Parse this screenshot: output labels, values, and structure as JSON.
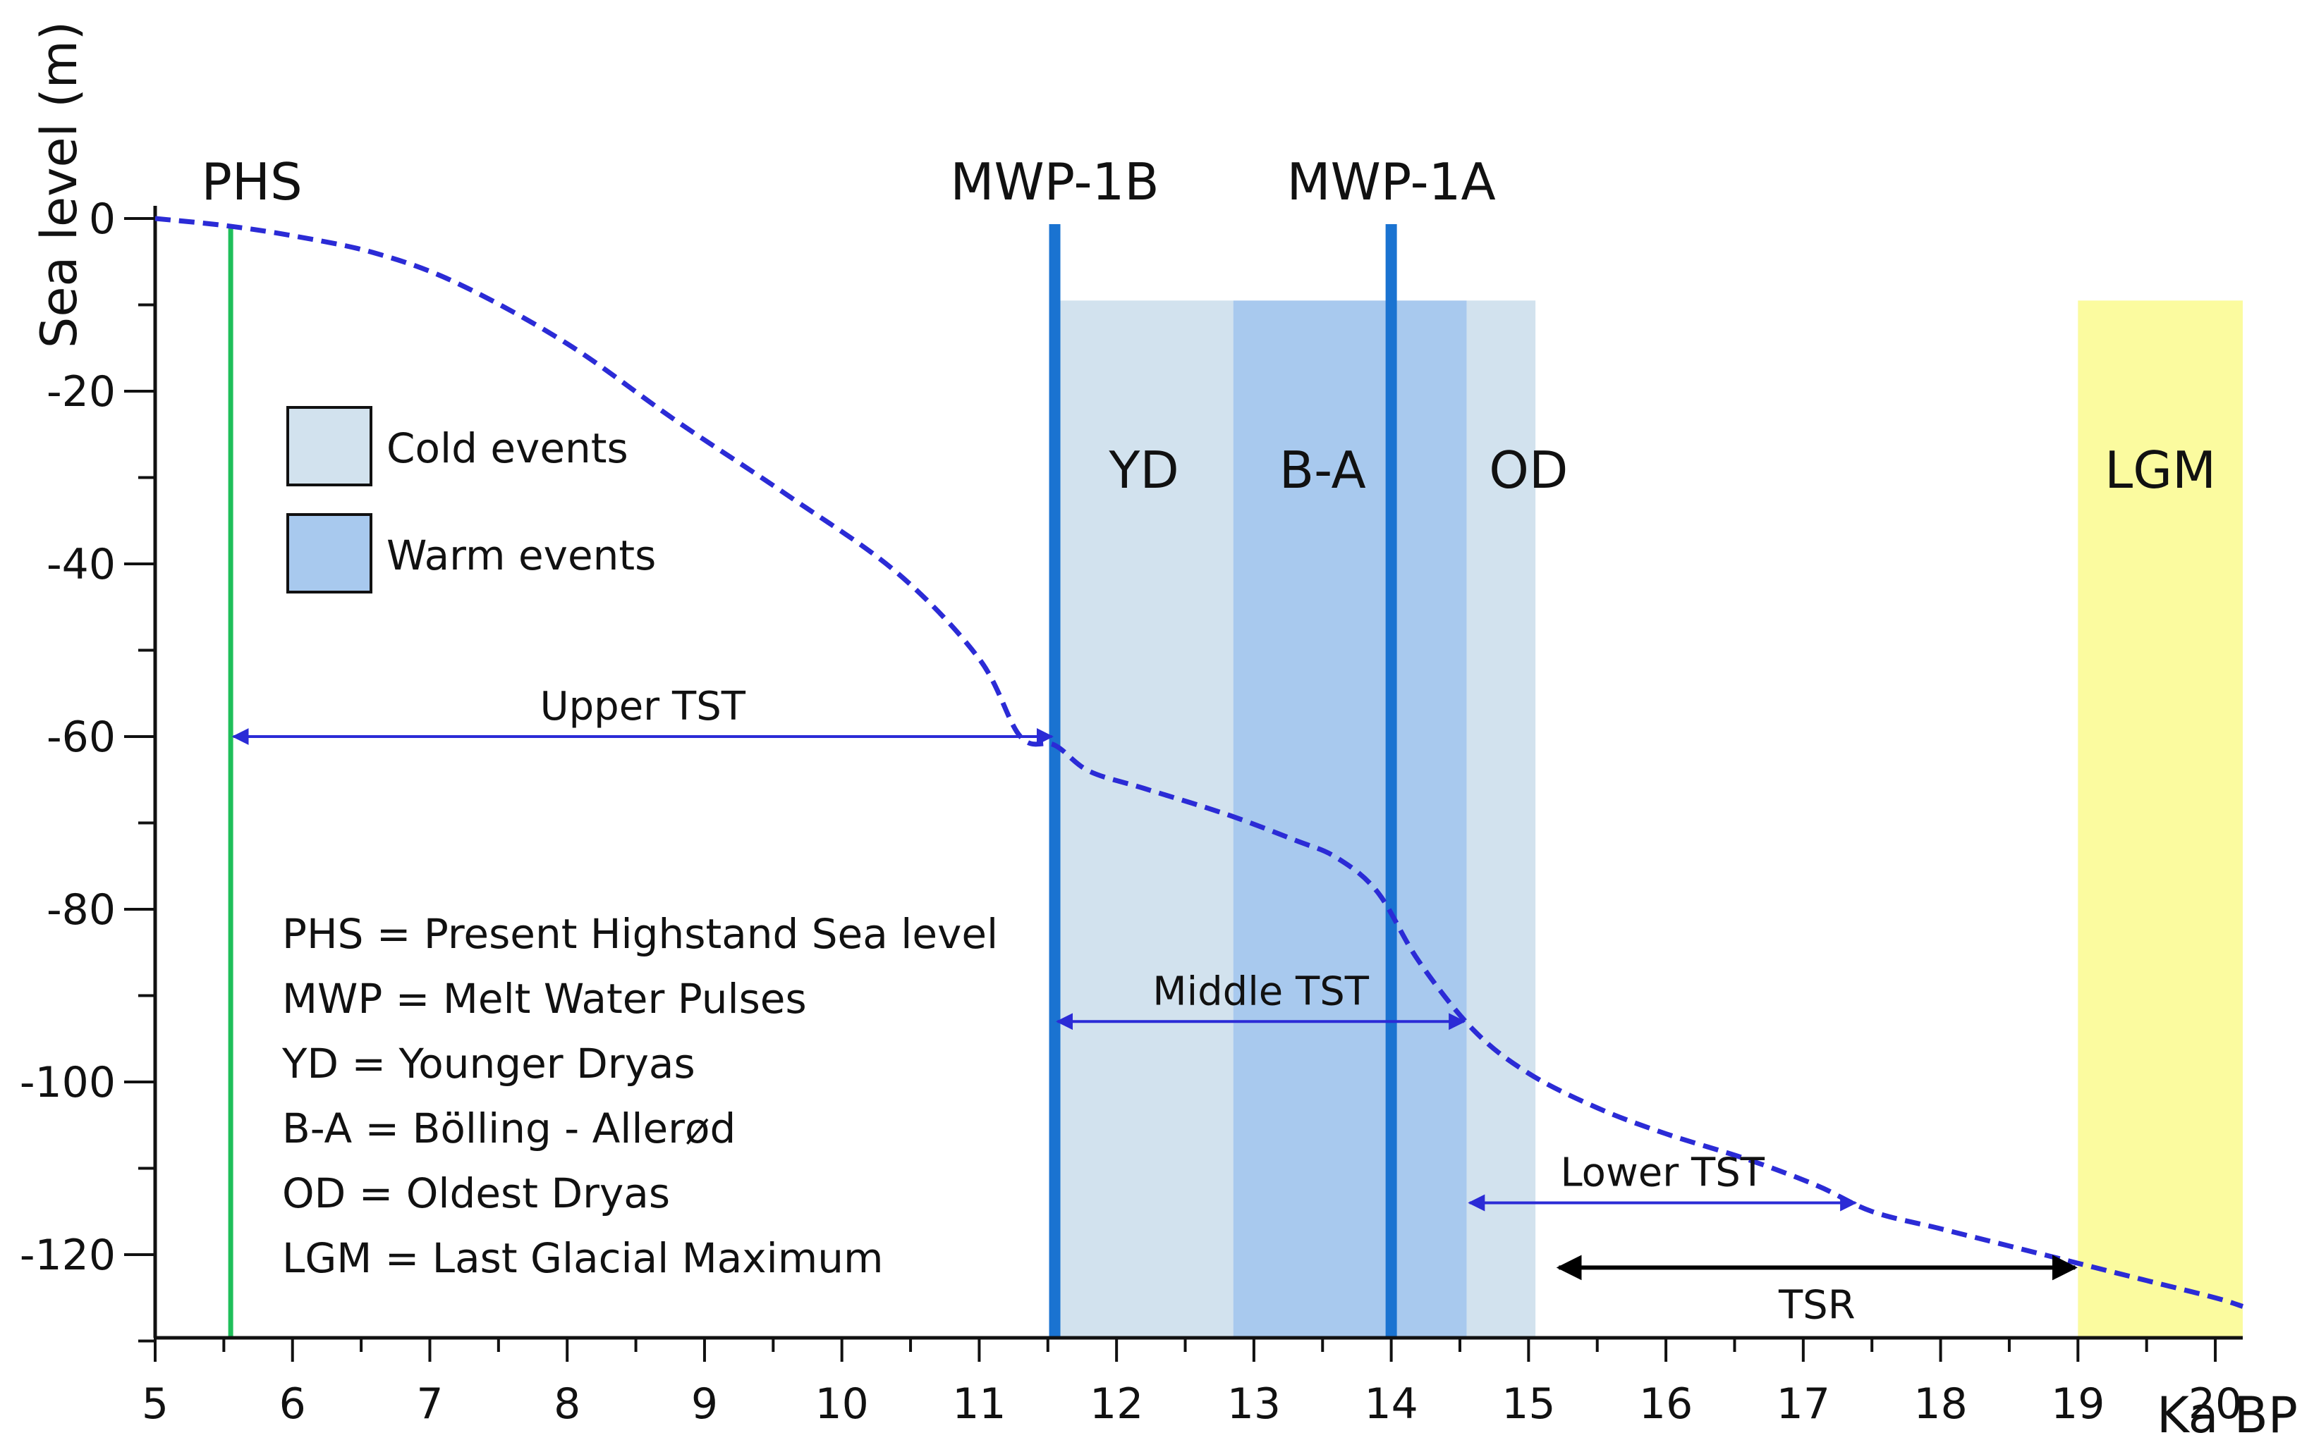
{
  "chart_data": {
    "type": "line",
    "xlabel": "Ka BP",
    "ylabel": "Sea level (m)",
    "xlim": [
      5,
      20.2
    ],
    "ylim": [
      -130,
      0
    ],
    "x_ticks": [
      5,
      6,
      7,
      8,
      9,
      10,
      11,
      12,
      13,
      14,
      15,
      16,
      17,
      18,
      19,
      20
    ],
    "y_ticks": [
      0,
      -20,
      -40,
      -60,
      -80,
      -100,
      -120
    ],
    "series": [
      {
        "color": "#2b2bd6",
        "style": "dashed",
        "x": [
          5.0,
          5.5,
          6.0,
          6.6,
          7.2,
          8.0,
          8.8,
          9.6,
          10.4,
          11.0,
          11.3,
          11.55,
          11.8,
          12.2,
          12.8,
          13.3,
          13.6,
          13.9,
          14.2,
          14.6,
          15.0,
          15.5,
          16.0,
          16.6,
          17.1,
          17.5,
          18.0,
          18.5,
          19.0,
          19.5,
          20.0,
          20.2
        ],
        "y": [
          0,
          -0.8,
          -2,
          -4,
          -7.5,
          -14.5,
          -23.5,
          -32,
          -41,
          -51,
          -60,
          -61,
          -64,
          -66,
          -69,
          -72,
          -74,
          -78,
          -86,
          -94,
          -99,
          -103,
          -106,
          -109,
          -112,
          -115,
          -117,
          -119,
          -121,
          -123,
          -125,
          -126
        ]
      }
    ],
    "vertical_lines": [
      {
        "label": "PHS",
        "x": 5.55,
        "color": "#1fbf5a"
      },
      {
        "label": "MWP-1B",
        "x": 11.55,
        "color": "#1a73d1"
      },
      {
        "label": "MWP-1A",
        "x": 14.0,
        "color": "#1a73d1"
      }
    ],
    "bands": [
      {
        "label": "YD",
        "x0": 11.55,
        "x1": 12.85,
        "kind": "cold",
        "color": "#d2e2ee"
      },
      {
        "label": "B-A",
        "x0": 12.85,
        "x1": 14.55,
        "kind": "warm",
        "color": "#a8c9ee"
      },
      {
        "label": "OD",
        "x0": 14.55,
        "x1": 15.05,
        "kind": "cold",
        "color": "#d2e2ee"
      },
      {
        "label": "LGM",
        "x0": 19.0,
        "x1": 20.2,
        "kind": "lgm",
        "color": "#fbfb9f"
      }
    ],
    "band_top": -9.5,
    "legend": [
      {
        "label": "Cold events",
        "color": "#d2e2ee"
      },
      {
        "label": "Warm events",
        "color": "#a8c9ee"
      }
    ],
    "arrows": [
      {
        "label": "Upper TST",
        "x0": 5.55,
        "x1": 11.55,
        "y": -60,
        "color": "#2b2bd6",
        "label_pos": "above"
      },
      {
        "label": "Middle TST",
        "x0": 11.55,
        "x1": 14.55,
        "y": -93,
        "color": "#2b2bd6",
        "label_pos": "above"
      },
      {
        "label": "Lower TST",
        "x0": 14.55,
        "x1": 17.4,
        "y": -114,
        "color": "#2b2bd6",
        "label_pos": "above"
      },
      {
        "label": "TSR",
        "x0": 15.2,
        "x1": 19.0,
        "y": -121.5,
        "color": "#000000",
        "label_pos": "below"
      }
    ],
    "abbreviations": [
      "PHS = Present Highstand Sea level",
      "MWP = Melt Water Pulses",
      "YD = Younger Dryas",
      "B-A = Bölling - Allerød",
      "OD = Oldest Dryas",
      "LGM = Last Glacial Maximum"
    ]
  }
}
